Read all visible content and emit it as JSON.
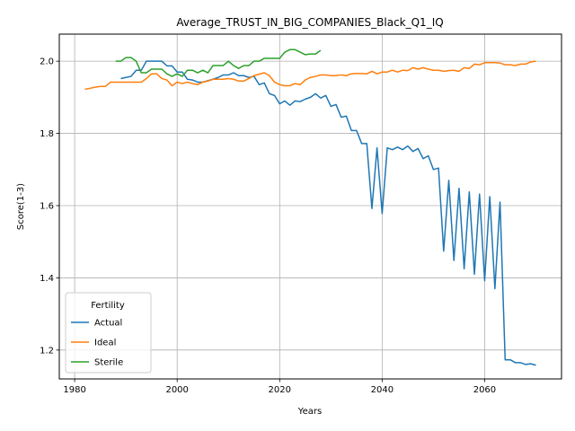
{
  "chart_data": {
    "type": "line",
    "title": "Average_TRUST_IN_BIG_COMPANIES_Black_Q1_IQ",
    "xlabel": "Years",
    "ylabel": "Score(1-3)",
    "xlim": [
      1977,
      2075
    ],
    "ylim": [
      1.12,
      2.075
    ],
    "xticks": [
      1980,
      2000,
      2020,
      2040,
      2060
    ],
    "yticks": [
      1.2,
      1.4,
      1.6,
      1.8,
      2.0
    ],
    "ytick_labels": [
      "1.2",
      "1.4",
      "1.6",
      "1.8",
      "2.0"
    ],
    "grid": true,
    "legend": {
      "title": "Fertility",
      "position": "lower-left"
    },
    "series": [
      {
        "name": "Actual",
        "color": "#1f77b4",
        "x": [
          1989,
          1990,
          1991,
          1992,
          1993,
          1994,
          1995,
          1996,
          1997,
          1998,
          1999,
          2000,
          2001,
          2002,
          2003,
          2004,
          2005,
          2006,
          2007,
          2008,
          2009,
          2010,
          2011,
          2012,
          2013,
          2014,
          2015,
          2016,
          2017,
          2018,
          2019,
          2020,
          2021,
          2022,
          2023,
          2024,
          2025,
          2026,
          2027,
          2028,
          2029,
          2030,
          2031,
          2032,
          2033,
          2034,
          2035,
          2036,
          2037,
          2038,
          2039,
          2040,
          2041,
          2042,
          2043,
          2044,
          2045,
          2046,
          2047,
          2048,
          2049,
          2050,
          2051,
          2052,
          2053,
          2054,
          2055,
          2056,
          2057,
          2058,
          2059,
          2060,
          2061,
          2062,
          2063,
          2064,
          2065,
          2066,
          2067,
          2068,
          2069,
          2070
        ],
        "values": [
          1.952,
          1.955,
          1.958,
          1.975,
          1.975,
          2.0,
          2.0,
          2.0,
          2.0,
          1.987,
          1.987,
          1.97,
          1.97,
          1.95,
          1.948,
          1.942,
          1.942,
          1.946,
          1.95,
          1.955,
          1.962,
          1.962,
          1.968,
          1.96,
          1.96,
          1.955,
          1.958,
          1.935,
          1.94,
          1.91,
          1.905,
          1.882,
          1.89,
          1.878,
          1.89,
          1.888,
          1.895,
          1.9,
          1.91,
          1.898,
          1.905,
          1.875,
          1.88,
          1.845,
          1.848,
          1.808,
          1.808,
          1.772,
          1.772,
          1.592,
          1.76,
          1.578,
          1.76,
          1.755,
          1.762,
          1.755,
          1.765,
          1.75,
          1.758,
          1.73,
          1.738,
          1.7,
          1.704,
          1.474,
          1.67,
          1.448,
          1.648,
          1.425,
          1.638,
          1.41,
          1.632,
          1.392,
          1.625,
          1.37,
          1.61,
          1.173,
          1.173,
          1.165,
          1.165,
          1.16,
          1.162,
          1.158
        ]
      },
      {
        "name": "Ideal",
        "color": "#ff7f0e",
        "x": [
          1982,
          1983,
          1984,
          1985,
          1986,
          1987,
          1988,
          1989,
          1990,
          1991,
          1992,
          1993,
          1994,
          1995,
          1996,
          1997,
          1998,
          1999,
          2000,
          2001,
          2002,
          2003,
          2004,
          2005,
          2006,
          2007,
          2008,
          2009,
          2010,
          2011,
          2012,
          2013,
          2014,
          2015,
          2016,
          2017,
          2018,
          2019,
          2020,
          2021,
          2022,
          2023,
          2024,
          2025,
          2026,
          2027,
          2028,
          2029,
          2030,
          2031,
          2032,
          2033,
          2034,
          2035,
          2036,
          2037,
          2038,
          2039,
          2040,
          2041,
          2042,
          2043,
          2044,
          2045,
          2046,
          2047,
          2048,
          2049,
          2050,
          2051,
          2052,
          2053,
          2054,
          2055,
          2056,
          2057,
          2058,
          2059,
          2060,
          2061,
          2062,
          2063,
          2064,
          2065,
          2066,
          2067,
          2068,
          2069,
          2070
        ],
        "values": [
          1.922,
          1.925,
          1.928,
          1.93,
          1.93,
          1.942,
          1.942,
          1.942,
          1.942,
          1.942,
          1.942,
          1.942,
          1.952,
          1.965,
          1.965,
          1.952,
          1.948,
          1.932,
          1.942,
          1.938,
          1.942,
          1.938,
          1.935,
          1.942,
          1.945,
          1.95,
          1.95,
          1.95,
          1.952,
          1.95,
          1.945,
          1.945,
          1.952,
          1.96,
          1.964,
          1.968,
          1.96,
          1.942,
          1.935,
          1.932,
          1.932,
          1.938,
          1.935,
          1.948,
          1.955,
          1.958,
          1.962,
          1.962,
          1.96,
          1.96,
          1.962,
          1.96,
          1.965,
          1.966,
          1.966,
          1.965,
          1.972,
          1.965,
          1.97,
          1.97,
          1.975,
          1.97,
          1.975,
          1.974,
          1.982,
          1.978,
          1.982,
          1.978,
          1.975,
          1.975,
          1.972,
          1.974,
          1.975,
          1.972,
          1.982,
          1.98,
          1.992,
          1.99,
          1.996,
          1.996,
          1.996,
          1.995,
          1.99,
          1.99,
          1.988,
          1.992,
          1.992,
          1.998,
          2.0
        ]
      },
      {
        "name": "Sterile",
        "color": "#2ca02c",
        "x": [
          1988,
          1989,
          1990,
          1991,
          1992,
          1993,
          1994,
          1995,
          1996,
          1997,
          1998,
          1999,
          2000,
          2001,
          2002,
          2003,
          2004,
          2005,
          2006,
          2007,
          2008,
          2009,
          2010,
          2011,
          2012,
          2013,
          2014,
          2015,
          2016,
          2017,
          2018,
          2019,
          2020,
          2021,
          2022,
          2023,
          2024,
          2025,
          2026,
          2027,
          2028
        ],
        "values": [
          2.0,
          2.0,
          2.01,
          2.01,
          2.0,
          1.968,
          1.968,
          1.978,
          1.978,
          1.978,
          1.965,
          1.958,
          1.965,
          1.958,
          1.975,
          1.975,
          1.968,
          1.975,
          1.968,
          1.988,
          1.988,
          1.988,
          2.0,
          1.988,
          1.98,
          1.988,
          1.988,
          2.0,
          2.0,
          2.008,
          2.008,
          2.008,
          2.008,
          2.025,
          2.032,
          2.032,
          2.025,
          2.018,
          2.02,
          2.02,
          2.03
        ]
      }
    ]
  }
}
